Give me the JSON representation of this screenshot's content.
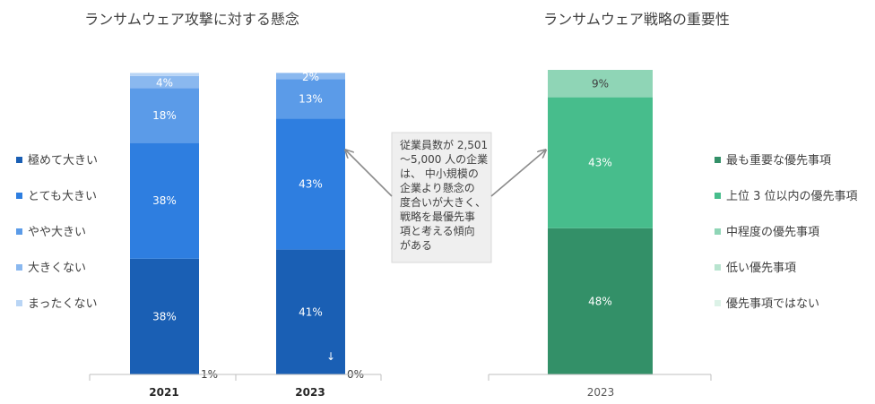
{
  "chart_data": [
    {
      "type": "bar",
      "stacked": true,
      "title": "ランサムウェア攻撃に対する懸念",
      "categories": [
        "2021",
        "2023"
      ],
      "series": [
        {
          "name": "極めて大きい",
          "values": [
            38,
            41
          ],
          "labels": [
            "38%",
            "41%"
          ],
          "color": "#1a5fb4"
        },
        {
          "name": "とても大きい",
          "values": [
            38,
            43
          ],
          "labels": [
            "38%",
            "43%"
          ],
          "color": "#2e7ee0"
        },
        {
          "name": "やや大きい",
          "values": [
            18,
            13
          ],
          "labels": [
            "18%",
            "13%"
          ],
          "color": "#5b9be8"
        },
        {
          "name": "大きくない",
          "values": [
            4,
            2
          ],
          "labels": [
            "4%",
            "2%"
          ],
          "color": "#8ab8ef"
        },
        {
          "name": "まったくない",
          "values": [
            1,
            0
          ],
          "labels": [
            "1%",
            "0%"
          ],
          "color": "#b9d5f5"
        }
      ],
      "ylim": [
        0,
        100
      ],
      "legend_position": "left"
    },
    {
      "type": "bar",
      "stacked": true,
      "title": "ランサムウェア戦略の重要性",
      "categories": [
        "2023"
      ],
      "series": [
        {
          "name": "最も重要な優先事項",
          "values": [
            48
          ],
          "labels": [
            "48%"
          ],
          "color": "#339068"
        },
        {
          "name": "上位 3 位以内の優先事項",
          "values": [
            43
          ],
          "labels": [
            "43%"
          ],
          "color": "#47bd8c"
        },
        {
          "name": "中程度の優先事項",
          "values": [
            9
          ],
          "labels": [
            "9%"
          ],
          "color": "#8fd5b6"
        },
        {
          "name": "低い優先事項",
          "values": [
            0
          ],
          "labels": [
            ""
          ],
          "color": "#b8e4cf"
        },
        {
          "name": "優先事項ではない",
          "values": [
            0
          ],
          "labels": [
            ""
          ],
          "color": "#dcf2e7"
        }
      ],
      "ylim": [
        0,
        100
      ],
      "legend_position": "right"
    }
  ],
  "note": {
    "lines": [
      "従業員数が 2,501",
      "〜5,000 人の企業",
      "は、 中小規模の",
      "企業より懸念の",
      "度合いが大きく、",
      "戦略を最優先事",
      "項と考える傾向",
      "がある"
    ]
  },
  "marker": {
    "arrow_glyph": "↓"
  }
}
